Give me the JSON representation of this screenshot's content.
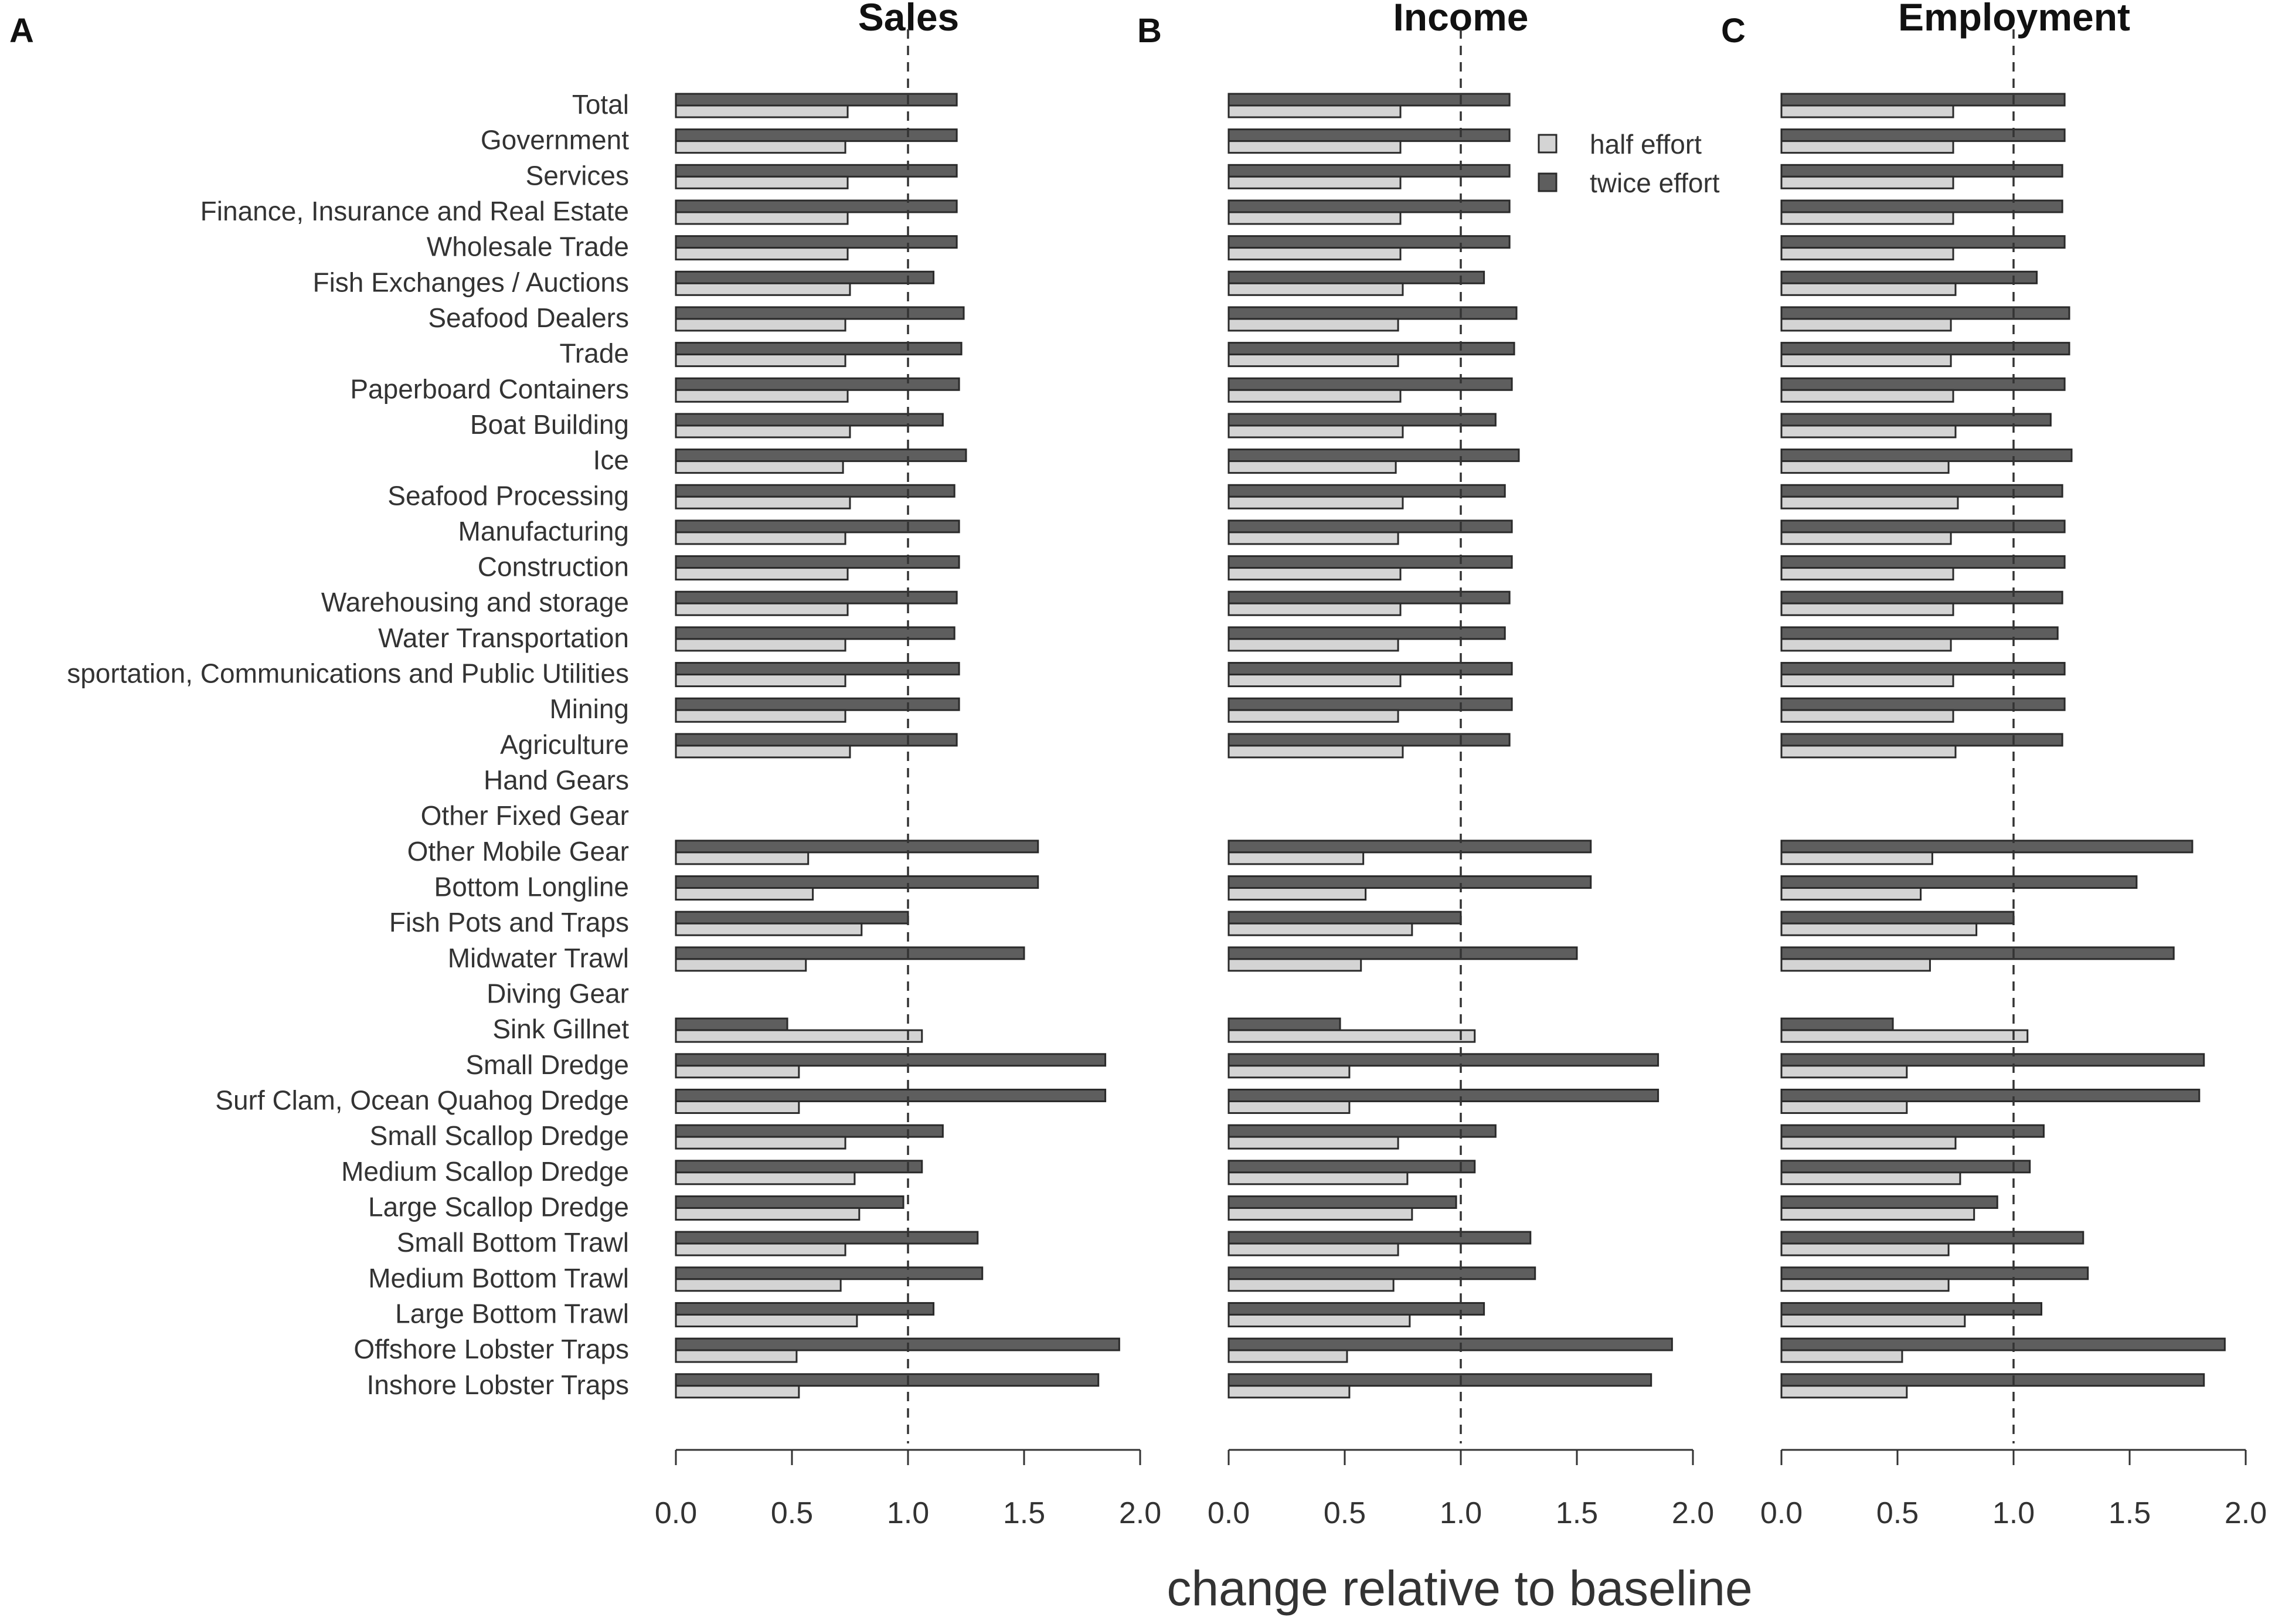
{
  "chart_data": {
    "type": "bar",
    "orientation": "horizontal",
    "xlabel": "change relative to baseline",
    "xlim": [
      0,
      2.0
    ],
    "xticks": [
      0.0,
      0.5,
      1.0,
      1.5,
      2.0
    ],
    "xtick_labels": [
      "0.0",
      "0.5",
      "1.0",
      "1.5",
      "2.0"
    ],
    "reference_line": 1.0,
    "legend": {
      "position": "top-right",
      "entries": [
        "half effort",
        "twice effort"
      ]
    },
    "colors": {
      "half_effort": "#d4d4d4",
      "twice_effort": "#5e5e5e",
      "outline": "#2a2a2a",
      "reference": "#333333"
    },
    "categories": [
      "Total",
      "Government",
      "Services",
      "Finance, Insurance and Real Estate",
      "Wholesale Trade",
      "Fish Exchanges / Auctions",
      "Seafood Dealers",
      "Trade",
      "Paperboard Containers",
      "Boat Building",
      "Ice",
      "Seafood Processing",
      "Manufacturing",
      "Construction",
      "Warehousing and storage",
      "Water Transportation",
      "sportation, Communications and Public Utilities",
      "Mining",
      "Agriculture",
      "Hand Gears",
      "Other Fixed Gear",
      "Other Mobile Gear",
      "Bottom Longline",
      "Fish Pots and Traps",
      "Midwater Trawl",
      "Diving Gear",
      "Sink Gillnet",
      "Small Dredge",
      "Surf Clam, Ocean Quahog Dredge",
      "Small Scallop Dredge",
      "Medium Scallop Dredge",
      "Large Scallop Dredge",
      "Small Bottom Trawl",
      "Medium Bottom Trawl",
      "Large Bottom Trawl",
      "Offshore Lobster Traps",
      "Inshore Lobster Traps"
    ],
    "panels": [
      {
        "letter": "A",
        "title": "Sales",
        "series": [
          {
            "name": "twice effort",
            "values": [
              1.21,
              1.21,
              1.21,
              1.21,
              1.21,
              1.11,
              1.24,
              1.23,
              1.22,
              1.15,
              1.25,
              1.2,
              1.22,
              1.22,
              1.21,
              1.2,
              1.22,
              1.22,
              1.21,
              null,
              null,
              1.56,
              1.56,
              1.0,
              1.5,
              null,
              0.48,
              1.85,
              1.85,
              1.15,
              1.06,
              0.98,
              1.3,
              1.32,
              1.11,
              1.91,
              1.82
            ]
          },
          {
            "name": "half effort",
            "values": [
              0.74,
              0.73,
              0.74,
              0.74,
              0.74,
              0.75,
              0.73,
              0.73,
              0.74,
              0.75,
              0.72,
              0.75,
              0.73,
              0.74,
              0.74,
              0.73,
              0.73,
              0.73,
              0.75,
              null,
              null,
              0.57,
              0.59,
              0.8,
              0.56,
              null,
              1.06,
              0.53,
              0.53,
              0.73,
              0.77,
              0.79,
              0.73,
              0.71,
              0.78,
              0.52,
              0.53
            ]
          }
        ]
      },
      {
        "letter": "B",
        "title": "Income",
        "series": [
          {
            "name": "twice effort",
            "values": [
              1.21,
              1.21,
              1.21,
              1.21,
              1.21,
              1.1,
              1.24,
              1.23,
              1.22,
              1.15,
              1.25,
              1.19,
              1.22,
              1.22,
              1.21,
              1.19,
              1.22,
              1.22,
              1.21,
              null,
              null,
              1.56,
              1.56,
              1.0,
              1.5,
              null,
              0.48,
              1.85,
              1.85,
              1.15,
              1.06,
              0.98,
              1.3,
              1.32,
              1.1,
              1.91,
              1.82
            ]
          },
          {
            "name": "half effort",
            "values": [
              0.74,
              0.74,
              0.74,
              0.74,
              0.74,
              0.75,
              0.73,
              0.73,
              0.74,
              0.75,
              0.72,
              0.75,
              0.73,
              0.74,
              0.74,
              0.73,
              0.74,
              0.73,
              0.75,
              null,
              null,
              0.58,
              0.59,
              0.79,
              0.57,
              null,
              1.06,
              0.52,
              0.52,
              0.73,
              0.77,
              0.79,
              0.73,
              0.71,
              0.78,
              0.51,
              0.52
            ]
          }
        ]
      },
      {
        "letter": "C",
        "title": "Employment",
        "series": [
          {
            "name": "twice effort",
            "values": [
              1.22,
              1.22,
              1.21,
              1.21,
              1.22,
              1.1,
              1.24,
              1.24,
              1.22,
              1.16,
              1.25,
              1.21,
              1.22,
              1.22,
              1.21,
              1.19,
              1.22,
              1.22,
              1.21,
              null,
              null,
              1.77,
              1.53,
              1.0,
              1.69,
              null,
              0.48,
              1.82,
              1.8,
              1.13,
              1.07,
              0.93,
              1.3,
              1.32,
              1.12,
              1.91,
              1.82
            ]
          },
          {
            "name": "half effort",
            "values": [
              0.74,
              0.74,
              0.74,
              0.74,
              0.74,
              0.75,
              0.73,
              0.73,
              0.74,
              0.75,
              0.72,
              0.76,
              0.73,
              0.74,
              0.74,
              0.73,
              0.74,
              0.74,
              0.75,
              null,
              null,
              0.65,
              0.6,
              0.84,
              0.64,
              null,
              1.06,
              0.54,
              0.54,
              0.75,
              0.77,
              0.83,
              0.72,
              0.72,
              0.79,
              0.52,
              0.54
            ]
          }
        ]
      }
    ]
  }
}
